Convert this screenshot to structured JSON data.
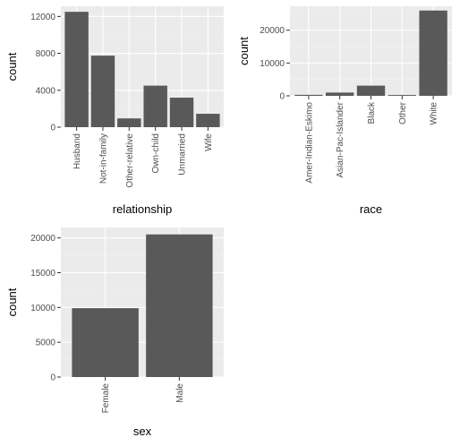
{
  "colors": {
    "panel_background": "#ebebeb",
    "grid_major": "#ffffff",
    "grid_minor": "#f2f2f2",
    "bar_fill": "#595959",
    "tick_text": "#4d4d4d",
    "tick_mark": "#333333"
  },
  "chart_data": [
    {
      "type": "bar",
      "categories": [
        "Husband",
        "Not-in-family",
        "Other-relative",
        "Own-child",
        "Unmarried",
        "Wife"
      ],
      "values": [
        12500,
        7750,
        950,
        4500,
        3200,
        1450
      ],
      "xlabel": "relationship",
      "ylabel": "count",
      "ylim": [
        0,
        13100
      ],
      "yticks": [
        0,
        4000,
        8000,
        12000
      ],
      "ytick_labels": [
        "0",
        "4000",
        "8000",
        "12000"
      ]
    },
    {
      "type": "bar",
      "categories": [
        "Amer-Indian-Eskimo",
        "Asian-Pac-Islander",
        "Black",
        "Other",
        "White"
      ],
      "values": [
        300,
        1000,
        3100,
        250,
        26000
      ],
      "xlabel": "race",
      "ylabel": "count",
      "ylim": [
        0,
        27300
      ],
      "yticks": [
        0,
        10000,
        20000
      ],
      "ytick_labels": [
        "0",
        "10000",
        "20000"
      ]
    },
    {
      "type": "bar",
      "categories": [
        "Female",
        "Male"
      ],
      "values": [
        9900,
        20500
      ],
      "xlabel": "sex",
      "ylabel": "count",
      "ylim": [
        0,
        21500
      ],
      "yticks": [
        0,
        5000,
        10000,
        15000,
        20000
      ],
      "ytick_labels": [
        "0",
        "5000",
        "10000",
        "15000",
        "20000"
      ]
    }
  ]
}
